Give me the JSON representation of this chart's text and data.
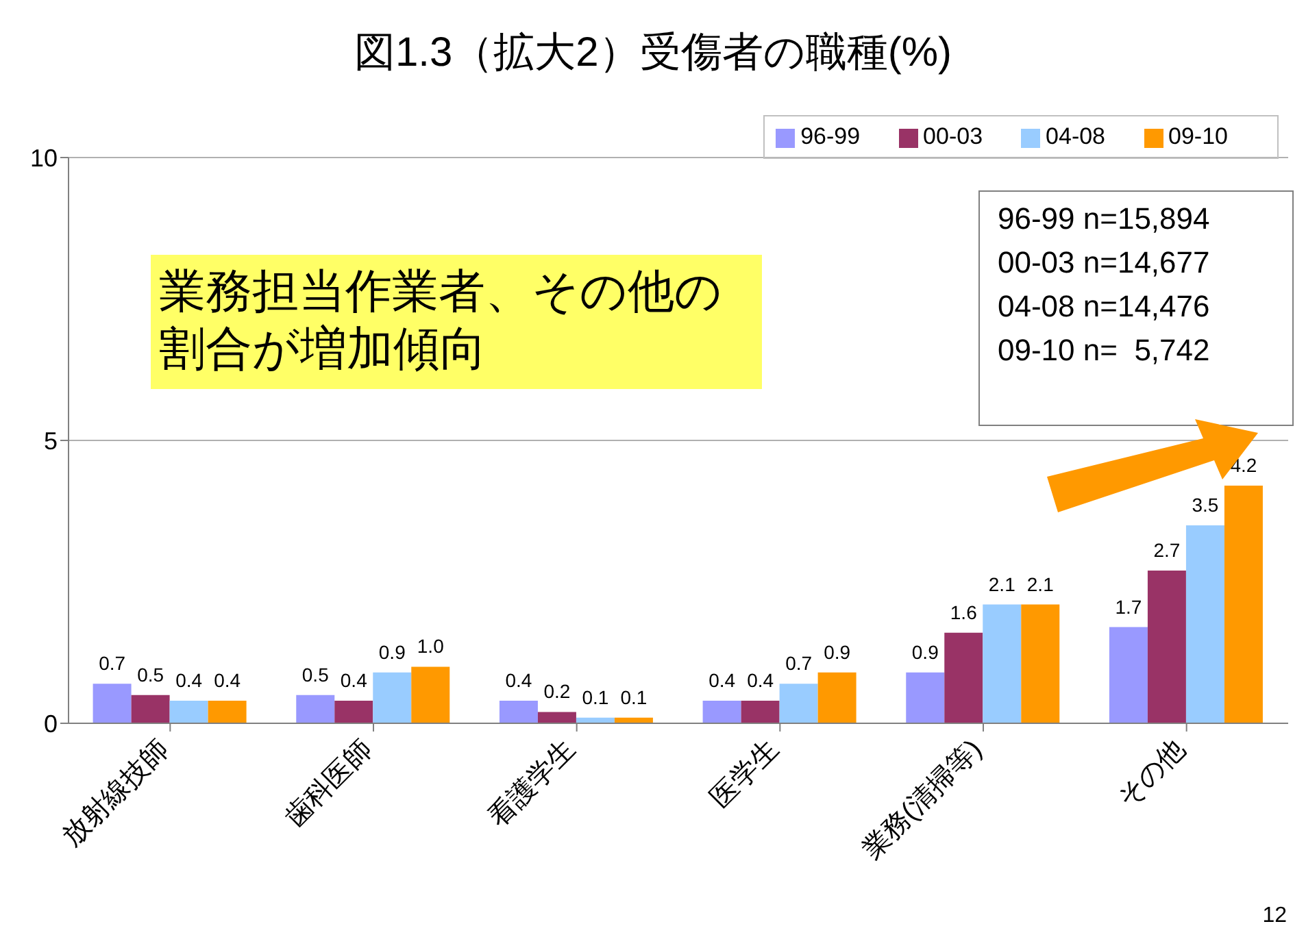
{
  "chart_data": {
    "type": "bar",
    "title": "図1.3（拡大2）受傷者の職種(%)",
    "categories": [
      "放射線技師",
      "歯科医師",
      "看護学生",
      "医学生",
      "業務(清掃等)",
      "その他"
    ],
    "series": [
      {
        "name": "96-99",
        "color": "#9999ff",
        "values": [
          0.7,
          0.5,
          0.4,
          0.4,
          0.9,
          1.7
        ],
        "value_labels": [
          "0.7",
          "0.5",
          "0.4",
          "0.4",
          "0.9",
          "1.7"
        ]
      },
      {
        "name": "00-03",
        "color": "#993366",
        "values": [
          0.5,
          0.4,
          0.2,
          0.4,
          1.6,
          2.7
        ],
        "value_labels": [
          "0.5",
          "0.4",
          "0.2",
          "0.4",
          "1.6",
          "2.7"
        ]
      },
      {
        "name": "04-08",
        "color": "#99ccff",
        "values": [
          0.4,
          0.9,
          0.1,
          0.7,
          2.1,
          3.5
        ],
        "value_labels": [
          "0.4",
          "0.9",
          "0.1",
          "0.7",
          "2.1",
          "3.5"
        ]
      },
      {
        "name": "09-10",
        "color": "#ff9900",
        "values": [
          0.4,
          1.0,
          0.1,
          0.9,
          2.1,
          4.2
        ],
        "value_labels": [
          "0.4",
          "1.0",
          "0.1",
          "0.9",
          "2.1",
          "4.2"
        ]
      }
    ],
    "ylim": [
      0,
      10
    ],
    "yticks": [
      0,
      5,
      10
    ],
    "grid": "y",
    "legend": "top right",
    "annotations": [
      "業務担当作業者、その他の割合が増加傾向",
      "96-99 n=15,894\n00-03 n=14,677\n04-08 n=14,476\n09-10 n=  5,742",
      "12"
    ]
  }
}
